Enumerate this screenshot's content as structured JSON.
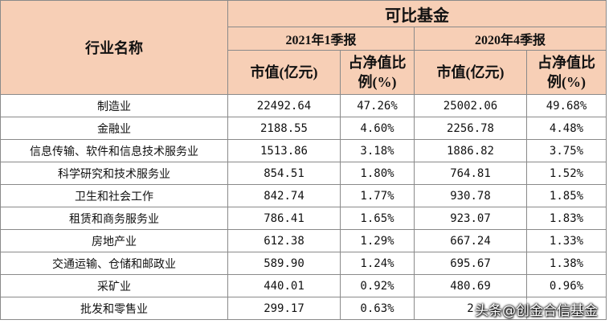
{
  "header": {
    "industry_label": "行业名称",
    "group_label": "可比基金",
    "periods": [
      "2021年1季报",
      "2020年4季报"
    ],
    "col_value": "市值(亿元)",
    "col_pct_line1": "占净值比",
    "col_pct_line2": "例(%)"
  },
  "rows": [
    {
      "industry": "制造业",
      "v1": "22492.64",
      "p1": "47.26%",
      "v2": "25002.06",
      "p2": "49.68%"
    },
    {
      "industry": "金融业",
      "v1": "2188.55",
      "p1": "4.60%",
      "v2": "2256.78",
      "p2": "4.48%"
    },
    {
      "industry": "信息传输、软件和信息技术服务业",
      "v1": "1513.86",
      "p1": "3.18%",
      "v2": "1886.82",
      "p2": "3.75%"
    },
    {
      "industry": "科学研究和技术服务业",
      "v1": "854.51",
      "p1": "1.80%",
      "v2": "764.81",
      "p2": "1.52%"
    },
    {
      "industry": "卫生和社会工作",
      "v1": "842.74",
      "p1": "1.77%",
      "v2": "930.78",
      "p2": "1.85%"
    },
    {
      "industry": "租赁和商务服务业",
      "v1": "786.41",
      "p1": "1.65%",
      "v2": "923.07",
      "p2": "1.83%"
    },
    {
      "industry": "房地产业",
      "v1": "612.38",
      "p1": "1.29%",
      "v2": "667.24",
      "p2": "1.33%"
    },
    {
      "industry": "交通运输、仓储和邮政业",
      "v1": "589.90",
      "p1": "1.24%",
      "v2": "695.67",
      "p2": "1.38%"
    },
    {
      "industry": "采矿业",
      "v1": "440.01",
      "p1": "0.92%",
      "v2": "480.69",
      "p2": "0.96%"
    },
    {
      "industry": "批发和零售业",
      "v1": "299.17",
      "p1": "0.63%",
      "v2": "2",
      "p2": ""
    }
  ],
  "watermark": "头条@创金合信基金"
}
